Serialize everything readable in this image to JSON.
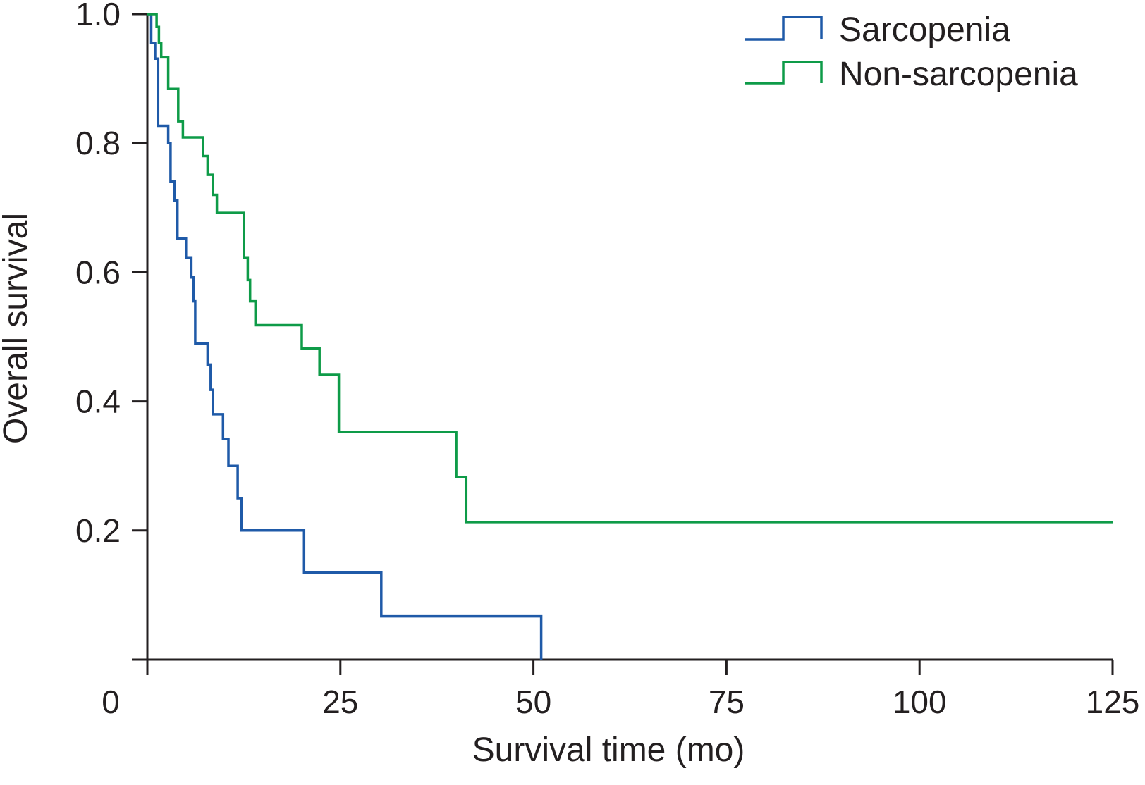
{
  "chart_data": {
    "type": "line",
    "subtype": "kaplan-meier-step",
    "title": "",
    "xlabel": "Survival time (mo)",
    "ylabel": "Overall survival",
    "xlim": [
      0,
      125
    ],
    "ylim": [
      0,
      1.0
    ],
    "x_ticks": [
      0,
      25,
      50,
      75,
      100,
      125
    ],
    "x_tick_labels": [
      "0",
      "25",
      "50",
      "75",
      "100",
      "125"
    ],
    "y_ticks": [
      0.2,
      0.4,
      0.6,
      0.8,
      1.0
    ],
    "y_tick_labels": [
      "0.2",
      "0.4",
      "0.6",
      "0.8",
      "1.0"
    ],
    "grid": false,
    "legend_position": "top-right",
    "series": [
      {
        "name": "Sarcopenia",
        "color": "#1f5aa8",
        "points": [
          [
            0,
            1.0
          ],
          [
            0.5,
            1.0
          ],
          [
            0.5,
            0.955
          ],
          [
            1.0,
            0.955
          ],
          [
            1.0,
            0.931
          ],
          [
            1.4,
            0.931
          ],
          [
            1.4,
            0.827
          ],
          [
            2.7,
            0.827
          ],
          [
            2.7,
            0.8
          ],
          [
            3.0,
            0.8
          ],
          [
            3.0,
            0.741
          ],
          [
            3.5,
            0.741
          ],
          [
            3.5,
            0.711
          ],
          [
            3.9,
            0.711
          ],
          [
            3.9,
            0.652
          ],
          [
            5.0,
            0.652
          ],
          [
            5.0,
            0.622
          ],
          [
            5.7,
            0.622
          ],
          [
            5.7,
            0.592
          ],
          [
            6.0,
            0.592
          ],
          [
            6.0,
            0.555
          ],
          [
            6.2,
            0.555
          ],
          [
            6.2,
            0.49
          ],
          [
            7.8,
            0.49
          ],
          [
            7.8,
            0.457
          ],
          [
            8.2,
            0.457
          ],
          [
            8.2,
            0.418
          ],
          [
            8.5,
            0.418
          ],
          [
            8.5,
            0.38
          ],
          [
            9.8,
            0.38
          ],
          [
            9.8,
            0.342
          ],
          [
            10.5,
            0.342
          ],
          [
            10.5,
            0.3
          ],
          [
            11.7,
            0.3
          ],
          [
            11.7,
            0.25
          ],
          [
            12.2,
            0.25
          ],
          [
            12.2,
            0.2
          ],
          [
            20.3,
            0.2
          ],
          [
            20.3,
            0.135
          ],
          [
            30.3,
            0.135
          ],
          [
            30.3,
            0.067
          ],
          [
            51.0,
            0.067
          ],
          [
            51.0,
            0.0
          ]
        ]
      },
      {
        "name": "Non-sarcopenia",
        "color": "#0e9b48",
        "points": [
          [
            0,
            1.0
          ],
          [
            1.2,
            1.0
          ],
          [
            1.2,
            0.98
          ],
          [
            1.5,
            0.98
          ],
          [
            1.5,
            0.955
          ],
          [
            1.8,
            0.955
          ],
          [
            1.8,
            0.933
          ],
          [
            2.7,
            0.933
          ],
          [
            2.7,
            0.884
          ],
          [
            4.0,
            0.884
          ],
          [
            4.0,
            0.834
          ],
          [
            4.6,
            0.834
          ],
          [
            4.6,
            0.809
          ],
          [
            7.2,
            0.809
          ],
          [
            7.2,
            0.78
          ],
          [
            7.8,
            0.78
          ],
          [
            7.8,
            0.751
          ],
          [
            8.5,
            0.751
          ],
          [
            8.5,
            0.72
          ],
          [
            9.0,
            0.72
          ],
          [
            9.0,
            0.692
          ],
          [
            12.5,
            0.692
          ],
          [
            12.5,
            0.622
          ],
          [
            13.0,
            0.622
          ],
          [
            13.0,
            0.588
          ],
          [
            13.3,
            0.588
          ],
          [
            13.3,
            0.555
          ],
          [
            14.0,
            0.555
          ],
          [
            14.0,
            0.518
          ],
          [
            20.0,
            0.518
          ],
          [
            20.0,
            0.482
          ],
          [
            22.3,
            0.482
          ],
          [
            22.3,
            0.441
          ],
          [
            24.8,
            0.441
          ],
          [
            24.8,
            0.353
          ],
          [
            40.0,
            0.353
          ],
          [
            40.0,
            0.283
          ],
          [
            41.3,
            0.283
          ],
          [
            41.3,
            0.213
          ],
          [
            125,
            0.213
          ]
        ]
      }
    ]
  }
}
